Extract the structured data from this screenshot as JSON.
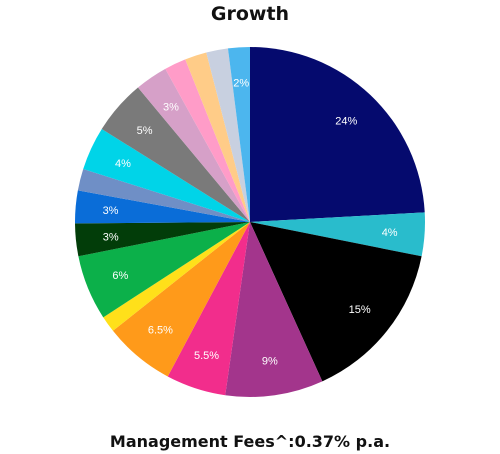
{
  "chart_data": {
    "type": "pie",
    "title": "Growth",
    "slices": [
      {
        "label": "24%",
        "value": 24,
        "color": "#050a6e"
      },
      {
        "label": "4%",
        "value": 4,
        "color": "#29bccc"
      },
      {
        "label": "15%",
        "value": 15,
        "color": "#000000"
      },
      {
        "label": "9%",
        "value": 9,
        "color": "#a3358c"
      },
      {
        "label": "5.5%",
        "value": 5.5,
        "color": "#f22d8c"
      },
      {
        "label": "6.5%",
        "value": 6.5,
        "color": "#ff9a1a"
      },
      {
        "label": "",
        "value": 1.5,
        "color": "#ffe01a"
      },
      {
        "label": "6%",
        "value": 6,
        "color": "#0cb04a"
      },
      {
        "label": "3%",
        "value": 3,
        "color": "#023d09"
      },
      {
        "label": "3%",
        "value": 3,
        "color": "#0a6dd8"
      },
      {
        "label": "",
        "value": 2,
        "color": "#6f8fc6"
      },
      {
        "label": "4%",
        "value": 4,
        "color": "#00d4e8"
      },
      {
        "label": "5%",
        "value": 5,
        "color": "#7a7a7a"
      },
      {
        "label": "3%",
        "value": 3,
        "color": "#d6a0c8"
      },
      {
        "label": "",
        "value": 2,
        "color": "#ff9cc8"
      },
      {
        "label": "",
        "value": 2,
        "color": "#ffcc88"
      },
      {
        "label": "",
        "value": 2,
        "color": "#c8d0e0"
      },
      {
        "label": "2%",
        "value": 2,
        "color": "#4cb6ee"
      }
    ]
  },
  "footer": {
    "fees_text": "Management Fees^:0.37% p.a."
  }
}
